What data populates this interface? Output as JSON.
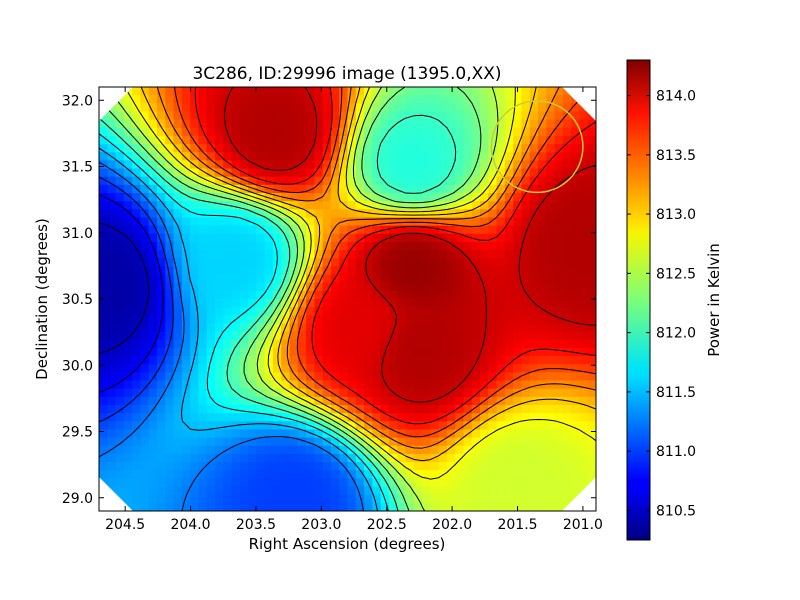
{
  "chart_data": {
    "type": "heatmap",
    "title": "3C286, ID:29996 image (1395.0,XX)",
    "xlabel": "Right Ascension (degrees)",
    "ylabel": "Declination (degrees)",
    "xlim": [
      204.7,
      200.9
    ],
    "ylim": [
      28.9,
      32.1
    ],
    "x_ticks": [
      "204.5",
      "204.0",
      "203.5",
      "203.0",
      "202.5",
      "202.0",
      "201.5",
      "201.0"
    ],
    "y_ticks": [
      "29.0",
      "29.5",
      "30.0",
      "30.5",
      "31.0",
      "31.5",
      "32.0"
    ],
    "colorbar": {
      "label": "Power in Kelvin",
      "range": [
        810.25,
        814.3
      ],
      "ticks": [
        "810.5",
        "811.0",
        "811.5",
        "812.0",
        "812.5",
        "813.0",
        "813.5",
        "814.0"
      ]
    },
    "features": [
      {
        "ra": 204.65,
        "dec": 30.62,
        "value": 810.4
      },
      {
        "ra": 203.65,
        "dec": 30.8,
        "value": 811.6
      },
      {
        "ra": 203.35,
        "dec": 31.75,
        "value": 814.1
      },
      {
        "ra": 202.3,
        "dec": 31.5,
        "value": 811.9
      },
      {
        "ra": 202.3,
        "dec": 30.75,
        "value": 814.2
      },
      {
        "ra": 202.25,
        "dec": 30.1,
        "value": 814.1
      },
      {
        "ra": 202.7,
        "dec": 30.3,
        "value": 813.9
      },
      {
        "ra": 201.0,
        "dec": 30.9,
        "value": 814.1
      },
      {
        "ra": 203.2,
        "dec": 29.0,
        "value": 811.0
      },
      {
        "ra": 201.5,
        "dec": 29.1,
        "value": 812.6
      }
    ],
    "beam_circle": {
      "ra": 201.35,
      "dec": 31.65,
      "radius_deg": 0.35
    }
  }
}
